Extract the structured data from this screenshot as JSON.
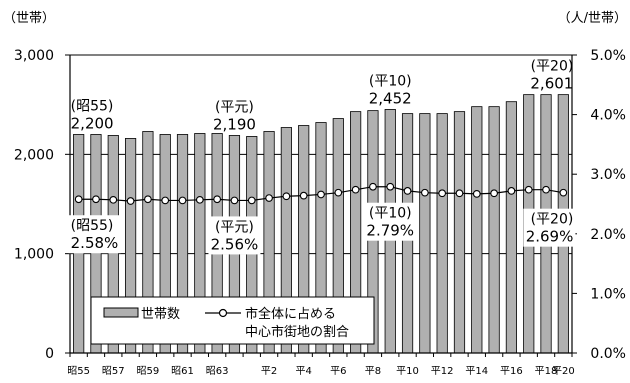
{
  "chart_data": {
    "type": "bar",
    "left_unit": "（世帯）",
    "right_unit": "（人/世帯）",
    "left_axis": {
      "min": 0,
      "max": 3000,
      "ticks": [
        "0",
        "1,000",
        "2,000",
        "3,000"
      ]
    },
    "right_axis": {
      "min": 0,
      "max": 5.0,
      "ticks": [
        "0.0%",
        "1.0%",
        "2.0%",
        "3.0%",
        "4.0%",
        "5.0%"
      ]
    },
    "x_tick_labels": [
      "昭55",
      "昭57",
      "昭59",
      "昭61",
      "昭63",
      "平2",
      "平4",
      "平6",
      "平8",
      "平10",
      "平12",
      "平14",
      "平16",
      "平18",
      "平20"
    ],
    "categories": [
      "昭55",
      "昭56",
      "昭57",
      "昭58",
      "昭59",
      "昭60",
      "昭61",
      "昭62",
      "昭63",
      "平元",
      "平2",
      "平3",
      "平4",
      "平5",
      "平6",
      "平7",
      "平8",
      "平9",
      "平10",
      "平11",
      "平12",
      "平13",
      "平14",
      "平15",
      "平16",
      "平17",
      "平18",
      "平19",
      "平20"
    ],
    "series": [
      {
        "name": "世帯数",
        "axis": "left",
        "values": [
          2200,
          2200,
          2190,
          2160,
          2230,
          2200,
          2200,
          2210,
          2210,
          2190,
          2180,
          2230,
          2270,
          2290,
          2320,
          2360,
          2430,
          2440,
          2452,
          2410,
          2410,
          2410,
          2430,
          2480,
          2480,
          2530,
          2601,
          2601,
          2601
        ]
      },
      {
        "name": "市全体に占める中心市街地の割合",
        "axis": "right",
        "values": [
          2.58,
          2.58,
          2.57,
          2.55,
          2.58,
          2.56,
          2.56,
          2.57,
          2.58,
          2.56,
          2.56,
          2.6,
          2.63,
          2.64,
          2.66,
          2.69,
          2.74,
          2.79,
          2.79,
          2.72,
          2.69,
          2.68,
          2.68,
          2.67,
          2.68,
          2.72,
          2.74,
          2.74,
          2.69
        ]
      }
    ],
    "legend": {
      "bar_label": "世帯数",
      "line_label_1": "市全体に占める",
      "line_label_2": "中心市街地の割合"
    },
    "annotations": [
      {
        "index": 0,
        "series": 0,
        "era": "(昭55)",
        "value": "2,200"
      },
      {
        "index": 9,
        "series": 0,
        "era": "(平元)",
        "value": "2,190"
      },
      {
        "index": 18,
        "series": 0,
        "era": "(平10)",
        "value": "2,452"
      },
      {
        "index": 28,
        "series": 0,
        "era": "(平20)",
        "value": "2,601"
      },
      {
        "index": 0,
        "series": 1,
        "era": "(昭55)",
        "value": "2.58%"
      },
      {
        "index": 9,
        "series": 1,
        "era": "(平元)",
        "value": "2.56%"
      },
      {
        "index": 18,
        "series": 1,
        "era": "(平10)",
        "value": "2.79%"
      },
      {
        "index": 28,
        "series": 1,
        "era": "(平20)",
        "value": "2.69%"
      }
    ]
  }
}
